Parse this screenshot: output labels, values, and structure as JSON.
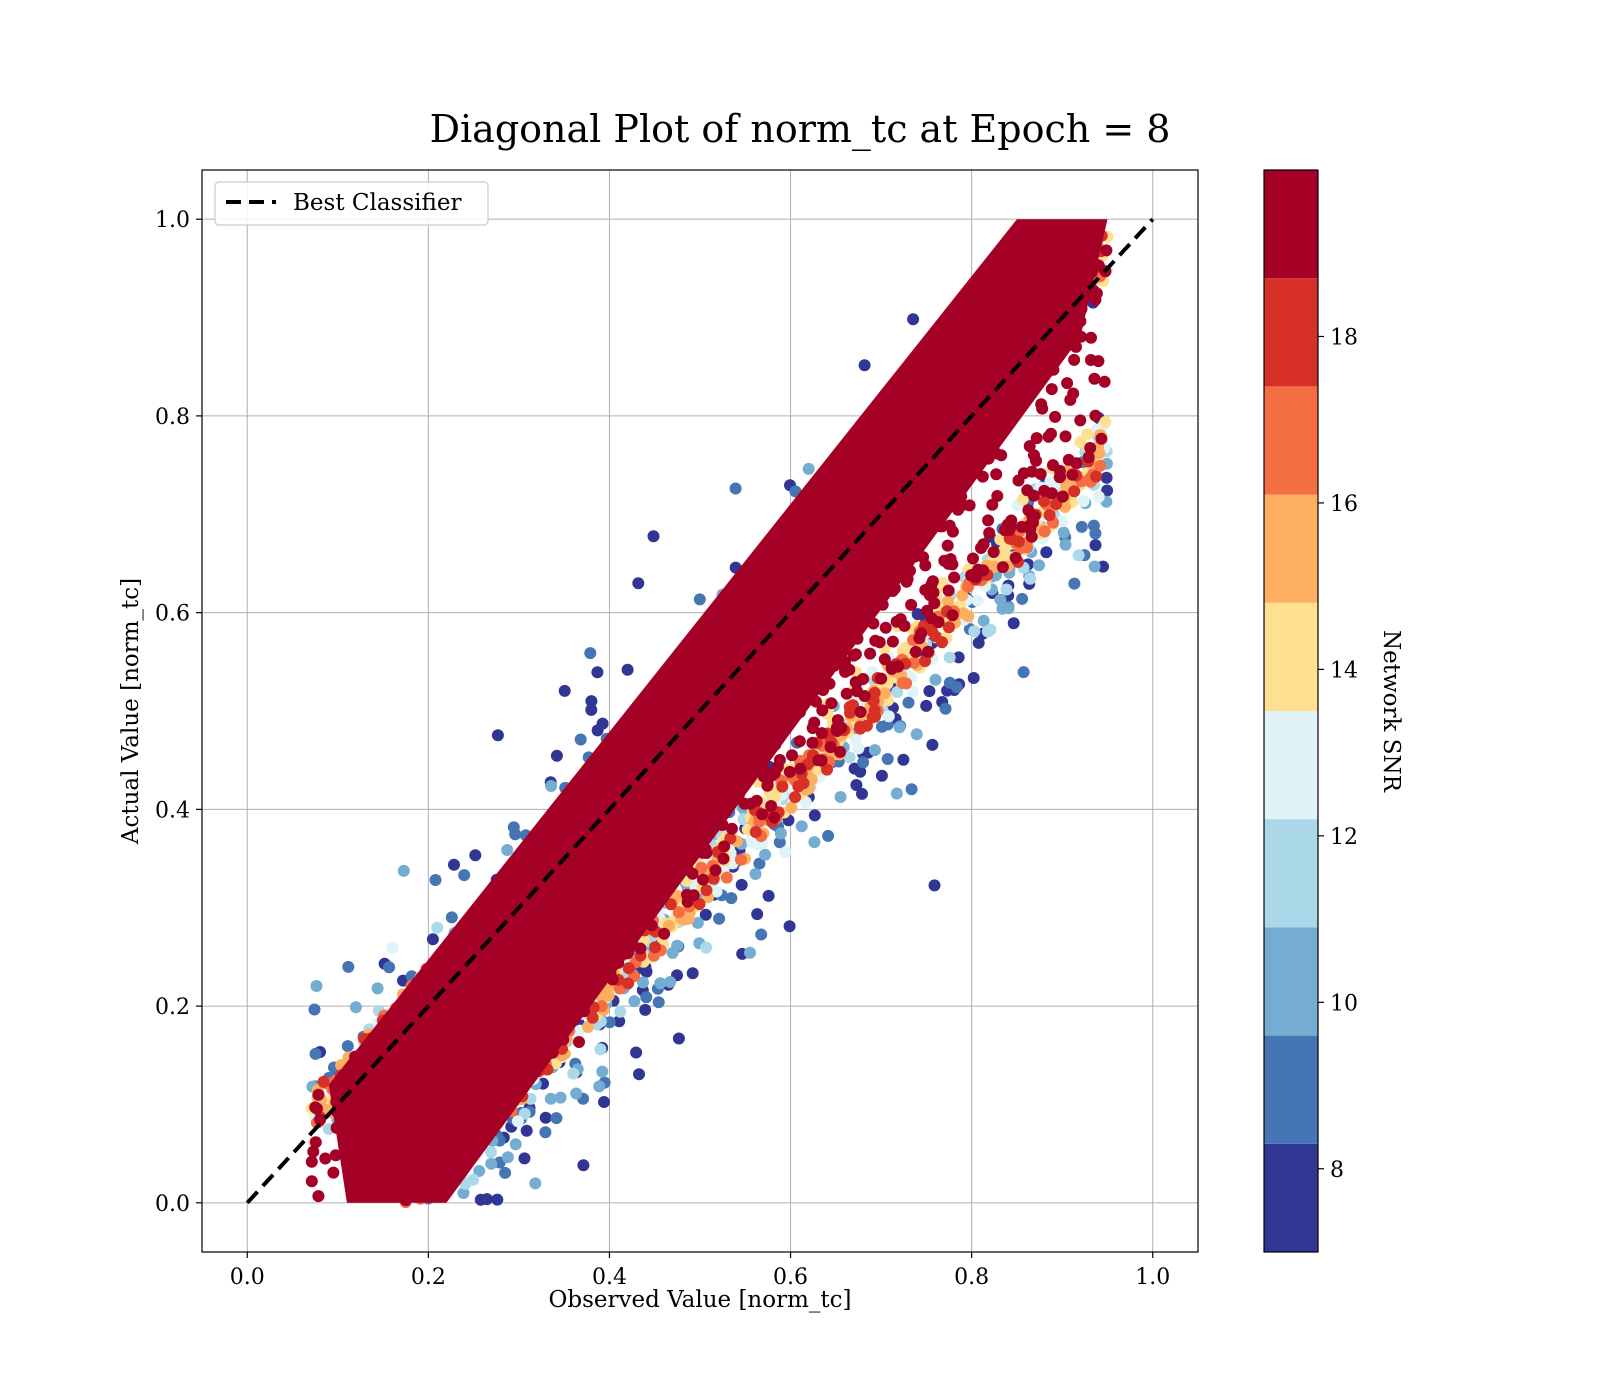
{
  "chart_data": {
    "type": "scatter",
    "title": "Diagonal Plot of norm_tc at Epoch = 8",
    "xlabel": "Observed Value [norm_tc]",
    "ylabel": "Actual Value [norm_tc]",
    "xlim": [
      -0.05,
      1.05
    ],
    "ylim": [
      -0.05,
      1.05
    ],
    "xticks": [
      0.0,
      0.2,
      0.4,
      0.6,
      0.8,
      1.0
    ],
    "yticks": [
      0.0,
      0.2,
      0.4,
      0.6,
      0.8,
      1.0
    ],
    "xtick_labels": [
      "0.0",
      "0.2",
      "0.4",
      "0.6",
      "0.8",
      "1.0"
    ],
    "ytick_labels": [
      "0.0",
      "0.2",
      "0.4",
      "0.6",
      "0.8",
      "1.0"
    ],
    "grid": true,
    "legend": {
      "position": "top-left",
      "entries": [
        "Best Classifier"
      ]
    },
    "reference_line": {
      "name": "Best Classifier",
      "style": "dashed",
      "color": "#000000",
      "x": [
        0.0,
        1.0
      ],
      "y": [
        0.0,
        1.0
      ]
    },
    "color_channel": {
      "label": "Network SNR",
      "range": [
        7,
        20
      ],
      "ticks": [
        8,
        10,
        12,
        14,
        16,
        18
      ],
      "tick_labels": [
        "8",
        "10",
        "12",
        "14",
        "16",
        "18"
      ],
      "bins": [
        {
          "from": 7.0,
          "to": 8.3,
          "color": "#313695"
        },
        {
          "from": 8.3,
          "to": 9.6,
          "color": "#4575b4"
        },
        {
          "from": 9.6,
          "to": 10.9,
          "color": "#74add1"
        },
        {
          "from": 10.9,
          "to": 12.2,
          "color": "#abd9e9"
        },
        {
          "from": 12.2,
          "to": 13.5,
          "color": "#e0f3f8"
        },
        {
          "from": 13.5,
          "to": 14.8,
          "color": "#fee090"
        },
        {
          "from": 14.8,
          "to": 16.1,
          "color": "#fdae61"
        },
        {
          "from": 16.1,
          "to": 17.4,
          "color": "#f46d43"
        },
        {
          "from": 17.4,
          "to": 18.7,
          "color": "#d73027"
        },
        {
          "from": 18.7,
          "to": 20.0,
          "color": "#a50026"
        }
      ]
    },
    "points_summary": {
      "x_range": [
        0.07,
        0.95
      ],
      "y_range": [
        0.0,
        1.0
      ],
      "high_snr_band_offset": 0.08,
      "low_snr_spread": 0.3
    }
  }
}
